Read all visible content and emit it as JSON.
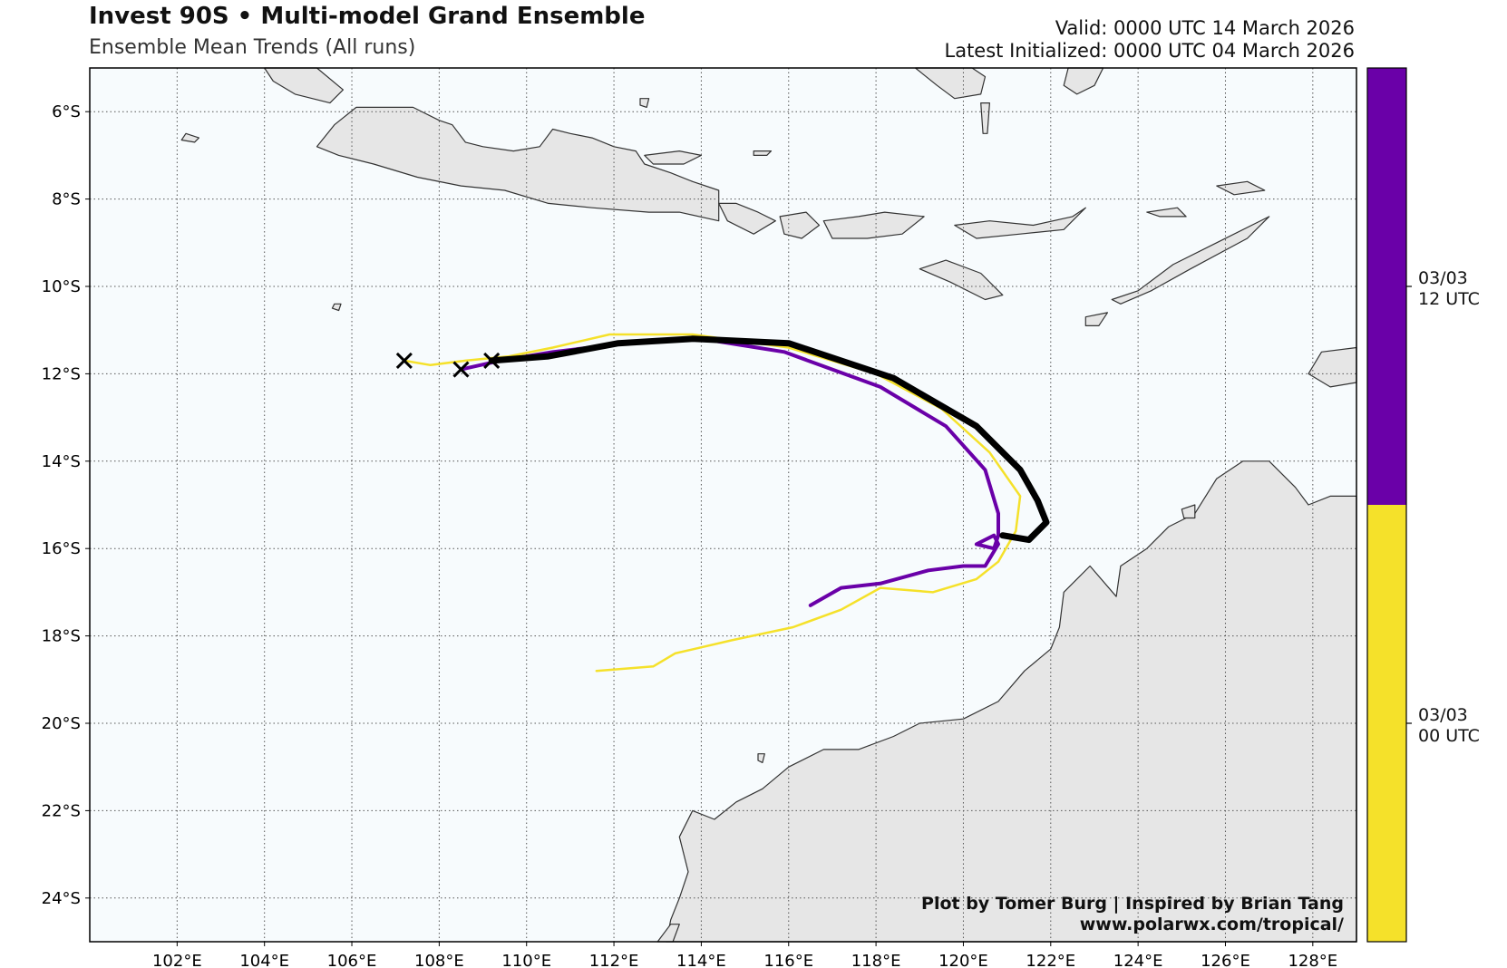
{
  "header": {
    "title": "Invest 90S • Multi-model Grand Ensemble",
    "subtitle": "Ensemble Mean Trends (All runs)",
    "valid": "Valid: 0000 UTC 14 March 2026",
    "initialized": "Latest Initialized: 0000 UTC 04 March 2026"
  },
  "map": {
    "lon_range": [
      100,
      129
    ],
    "lat_range": [
      -25,
      -5
    ],
    "lon_ticks": [
      "102°E",
      "104°E",
      "106°E",
      "108°E",
      "110°E",
      "112°E",
      "114°E",
      "116°E",
      "118°E",
      "120°E",
      "122°E",
      "124°E",
      "126°E",
      "128°E"
    ],
    "lat_ticks": [
      "6°S",
      "8°S",
      "10°S",
      "12°S",
      "14°S",
      "16°S",
      "18°S",
      "20°S",
      "22°S",
      "24°S"
    ],
    "colors": {
      "ocean": "#f7fbfd",
      "land": "#e6e6e6",
      "coast": "#333333",
      "grid": "#555555",
      "run_0000": "#f5e12a",
      "run_1200": "#6a00a8",
      "mean": "#000000"
    }
  },
  "colorbar": {
    "labels": [
      {
        "line1": "03/03",
        "line2": "12 UTC"
      },
      {
        "line1": "03/03",
        "line2": "00 UTC"
      }
    ]
  },
  "tracks": [
    {
      "name": "03/03 00 UTC",
      "color": "#f5e12a",
      "points": [
        [
          107.2,
          -11.7
        ],
        [
          107.8,
          -11.8
        ],
        [
          108.6,
          -11.7
        ],
        [
          109.6,
          -11.6
        ],
        [
          110.6,
          -11.4
        ],
        [
          111.9,
          -11.1
        ],
        [
          113.8,
          -11.1
        ],
        [
          116.0,
          -11.4
        ],
        [
          118.0,
          -12.0
        ],
        [
          119.5,
          -12.8
        ],
        [
          120.6,
          -13.8
        ],
        [
          121.3,
          -14.8
        ],
        [
          121.2,
          -15.6
        ],
        [
          120.8,
          -16.3
        ],
        [
          120.3,
          -16.7
        ],
        [
          119.3,
          -17.0
        ],
        [
          118.1,
          -16.9
        ],
        [
          117.2,
          -17.4
        ],
        [
          116.1,
          -17.8
        ],
        [
          114.7,
          -18.1
        ],
        [
          113.4,
          -18.4
        ],
        [
          112.9,
          -18.7
        ],
        [
          111.6,
          -18.8
        ]
      ]
    },
    {
      "name": "03/03 12 UTC",
      "color": "#6a00a8",
      "points": [
        [
          108.5,
          -11.9
        ],
        [
          109.4,
          -11.7
        ],
        [
          110.6,
          -11.5
        ],
        [
          112.3,
          -11.3
        ],
        [
          114.0,
          -11.2
        ],
        [
          115.9,
          -11.5
        ],
        [
          118.1,
          -12.3
        ],
        [
          119.6,
          -13.2
        ],
        [
          120.5,
          -14.2
        ],
        [
          120.8,
          -15.2
        ],
        [
          120.8,
          -15.7
        ],
        [
          120.7,
          -16.0
        ],
        [
          120.3,
          -15.9
        ],
        [
          120.7,
          -15.7
        ],
        [
          120.8,
          -15.9
        ],
        [
          120.5,
          -16.4
        ],
        [
          120.0,
          -16.4
        ],
        [
          119.2,
          -16.5
        ],
        [
          118.1,
          -16.8
        ],
        [
          117.2,
          -16.9
        ],
        [
          116.5,
          -17.3
        ]
      ]
    },
    {
      "name": "Ensemble Mean",
      "color": "#000000",
      "points": [
        [
          109.2,
          -11.7
        ],
        [
          110.5,
          -11.6
        ],
        [
          112.1,
          -11.3
        ],
        [
          113.8,
          -11.2
        ],
        [
          116.0,
          -11.3
        ],
        [
          118.4,
          -12.1
        ],
        [
          120.3,
          -13.2
        ],
        [
          121.3,
          -14.2
        ],
        [
          121.7,
          -14.9
        ],
        [
          121.9,
          -15.4
        ],
        [
          121.5,
          -15.8
        ],
        [
          120.9,
          -15.7
        ]
      ]
    }
  ],
  "markers": [
    {
      "lon": 107.2,
      "lat": -11.7
    },
    {
      "lon": 108.5,
      "lat": -11.9
    },
    {
      "lon": 109.2,
      "lat": -11.7
    }
  ],
  "land": {
    "java": [
      [
        105.2,
        -6.8
      ],
      [
        105.6,
        -6.3
      ],
      [
        106.1,
        -5.9
      ],
      [
        106.8,
        -5.9
      ],
      [
        107.4,
        -5.9
      ],
      [
        108.0,
        -6.2
      ],
      [
        108.3,
        -6.3
      ],
      [
        108.6,
        -6.7
      ],
      [
        109.0,
        -6.8
      ],
      [
        109.7,
        -6.9
      ],
      [
        110.3,
        -6.8
      ],
      [
        110.6,
        -6.4
      ],
      [
        111.0,
        -6.5
      ],
      [
        111.5,
        -6.6
      ],
      [
        112.0,
        -6.8
      ],
      [
        112.5,
        -6.9
      ],
      [
        112.7,
        -7.2
      ],
      [
        113.3,
        -7.4
      ],
      [
        113.8,
        -7.6
      ],
      [
        114.4,
        -7.8
      ],
      [
        114.4,
        -8.5
      ],
      [
        113.5,
        -8.3
      ],
      [
        112.8,
        -8.3
      ],
      [
        111.5,
        -8.2
      ],
      [
        110.5,
        -8.1
      ],
      [
        109.5,
        -7.8
      ],
      [
        108.5,
        -7.7
      ],
      [
        107.5,
        -7.5
      ],
      [
        106.5,
        -7.2
      ],
      [
        105.7,
        -7.0
      ]
    ],
    "sumatra_tip": [
      [
        104.0,
        -5.0
      ],
      [
        105.2,
        -5.0
      ],
      [
        105.8,
        -5.5
      ],
      [
        105.5,
        -5.8
      ],
      [
        104.7,
        -5.6
      ],
      [
        104.2,
        -5.3
      ]
    ],
    "madura": [
      [
        112.7,
        -7.0
      ],
      [
        113.5,
        -6.9
      ],
      [
        114.0,
        -7.0
      ],
      [
        113.6,
        -7.2
      ],
      [
        112.9,
        -7.2
      ]
    ],
    "bali": [
      [
        114.4,
        -8.1
      ],
      [
        114.8,
        -8.1
      ],
      [
        115.3,
        -8.3
      ],
      [
        115.7,
        -8.5
      ],
      [
        115.2,
        -8.8
      ],
      [
        114.6,
        -8.5
      ]
    ],
    "lombok": [
      [
        115.8,
        -8.4
      ],
      [
        116.4,
        -8.3
      ],
      [
        116.7,
        -8.6
      ],
      [
        116.3,
        -8.9
      ],
      [
        115.9,
        -8.8
      ]
    ],
    "sumbawa": [
      [
        116.8,
        -8.5
      ],
      [
        117.6,
        -8.4
      ],
      [
        118.2,
        -8.3
      ],
      [
        119.1,
        -8.4
      ],
      [
        118.6,
        -8.8
      ],
      [
        117.8,
        -8.9
      ],
      [
        117.0,
        -8.9
      ]
    ],
    "flores": [
      [
        119.8,
        -8.6
      ],
      [
        120.6,
        -8.5
      ],
      [
        121.6,
        -8.6
      ],
      [
        122.5,
        -8.4
      ],
      [
        122.8,
        -8.2
      ],
      [
        122.3,
        -8.7
      ],
      [
        121.3,
        -8.8
      ],
      [
        120.3,
        -8.9
      ]
    ],
    "sumba": [
      [
        119.0,
        -9.6
      ],
      [
        119.6,
        -9.4
      ],
      [
        120.4,
        -9.7
      ],
      [
        120.9,
        -10.2
      ],
      [
        120.5,
        -10.3
      ],
      [
        119.7,
        -9.9
      ]
    ],
    "timor": [
      [
        123.4,
        -10.3
      ],
      [
        124.0,
        -10.1
      ],
      [
        124.8,
        -9.5
      ],
      [
        125.8,
        -9.0
      ],
      [
        127.0,
        -8.4
      ],
      [
        126.5,
        -8.9
      ],
      [
        125.2,
        -9.6
      ],
      [
        124.3,
        -10.1
      ],
      [
        123.6,
        -10.4
      ]
    ],
    "wetar": [
      [
        125.8,
        -7.7
      ],
      [
        126.5,
        -7.6
      ],
      [
        126.9,
        -7.8
      ],
      [
        126.2,
        -7.9
      ]
    ],
    "alor": [
      [
        124.2,
        -8.3
      ],
      [
        124.9,
        -8.2
      ],
      [
        125.1,
        -8.4
      ],
      [
        124.5,
        -8.4
      ]
    ],
    "rote": [
      [
        122.8,
        -10.7
      ],
      [
        123.3,
        -10.6
      ],
      [
        123.1,
        -10.9
      ],
      [
        122.8,
        -10.9
      ]
    ],
    "sulawesi": [
      [
        118.9,
        -5.0
      ],
      [
        120.2,
        -5.0
      ],
      [
        120.5,
        -5.2
      ],
      [
        120.4,
        -5.6
      ],
      [
        119.8,
        -5.7
      ],
      [
        119.4,
        -5.4
      ]
    ],
    "selayar": [
      [
        120.4,
        -5.8
      ],
      [
        120.6,
        -5.8
      ],
      [
        120.55,
        -6.5
      ],
      [
        120.45,
        -6.5
      ]
    ],
    "buton": [
      [
        122.4,
        -5.0
      ],
      [
        123.2,
        -5.0
      ],
      [
        123.0,
        -5.4
      ],
      [
        122.6,
        -5.6
      ],
      [
        122.3,
        -5.4
      ]
    ],
    "bawean": [
      [
        112.6,
        -5.7
      ],
      [
        112.8,
        -5.7
      ],
      [
        112.75,
        -5.9
      ],
      [
        112.6,
        -5.85
      ]
    ],
    "kangean": [
      [
        115.2,
        -6.9
      ],
      [
        115.6,
        -6.9
      ],
      [
        115.5,
        -7.0
      ],
      [
        115.2,
        -7.0
      ]
    ],
    "christmas": [
      [
        105.6,
        -10.4
      ],
      [
        105.75,
        -10.4
      ],
      [
        105.7,
        -10.55
      ],
      [
        105.55,
        -10.5
      ]
    ],
    "sm1": [
      [
        102.2,
        -6.5
      ],
      [
        102.5,
        -6.6
      ],
      [
        102.4,
        -6.7
      ],
      [
        102.1,
        -6.65
      ]
    ],
    "australia": [
      [
        129,
        -14.8
      ],
      [
        128.4,
        -14.8
      ],
      [
        127.9,
        -15.0
      ],
      [
        127.6,
        -14.6
      ],
      [
        127.0,
        -14.0
      ],
      [
        126.4,
        -14.0
      ],
      [
        125.8,
        -14.4
      ],
      [
        125.3,
        -15.2
      ],
      [
        124.7,
        -15.5
      ],
      [
        124.2,
        -16.0
      ],
      [
        123.6,
        -16.4
      ],
      [
        123.5,
        -17.1
      ],
      [
        122.9,
        -16.4
      ],
      [
        122.3,
        -17.0
      ],
      [
        122.2,
        -17.8
      ],
      [
        122.0,
        -18.3
      ],
      [
        121.4,
        -18.8
      ],
      [
        120.8,
        -19.5
      ],
      [
        120.0,
        -19.9
      ],
      [
        119.0,
        -20.0
      ],
      [
        118.4,
        -20.3
      ],
      [
        117.6,
        -20.6
      ],
      [
        116.8,
        -20.6
      ],
      [
        116.0,
        -21.0
      ],
      [
        115.4,
        -21.5
      ],
      [
        114.8,
        -21.8
      ],
      [
        114.3,
        -22.2
      ],
      [
        113.8,
        -22.0
      ],
      [
        113.5,
        -22.6
      ],
      [
        113.7,
        -23.4
      ],
      [
        113.5,
        -24.0
      ],
      [
        113.3,
        -24.5
      ],
      [
        113.2,
        -25
      ],
      [
        129,
        -25
      ]
    ],
    "dirk_hartog": [
      [
        113.0,
        -25
      ],
      [
        113.3,
        -24.6
      ],
      [
        113.5,
        -24.6
      ],
      [
        113.35,
        -25
      ]
    ],
    "melville": [
      [
        129,
        -11.4
      ],
      [
        128.2,
        -11.5
      ],
      [
        127.9,
        -12.0
      ],
      [
        128.4,
        -12.3
      ],
      [
        129,
        -12.2
      ]
    ],
    "barrow": [
      [
        115.3,
        -20.7
      ],
      [
        115.45,
        -20.7
      ],
      [
        115.4,
        -20.9
      ],
      [
        115.3,
        -20.85
      ]
    ],
    "kimberley_isl": [
      [
        125.0,
        -15.1
      ],
      [
        125.3,
        -15.0
      ],
      [
        125.3,
        -15.3
      ],
      [
        125.05,
        -15.3
      ]
    ]
  },
  "credits": {
    "line1": "Plot by Tomer Burg | Inspired by Brian Tang",
    "line2": "www.polarwx.com/tropical/"
  }
}
